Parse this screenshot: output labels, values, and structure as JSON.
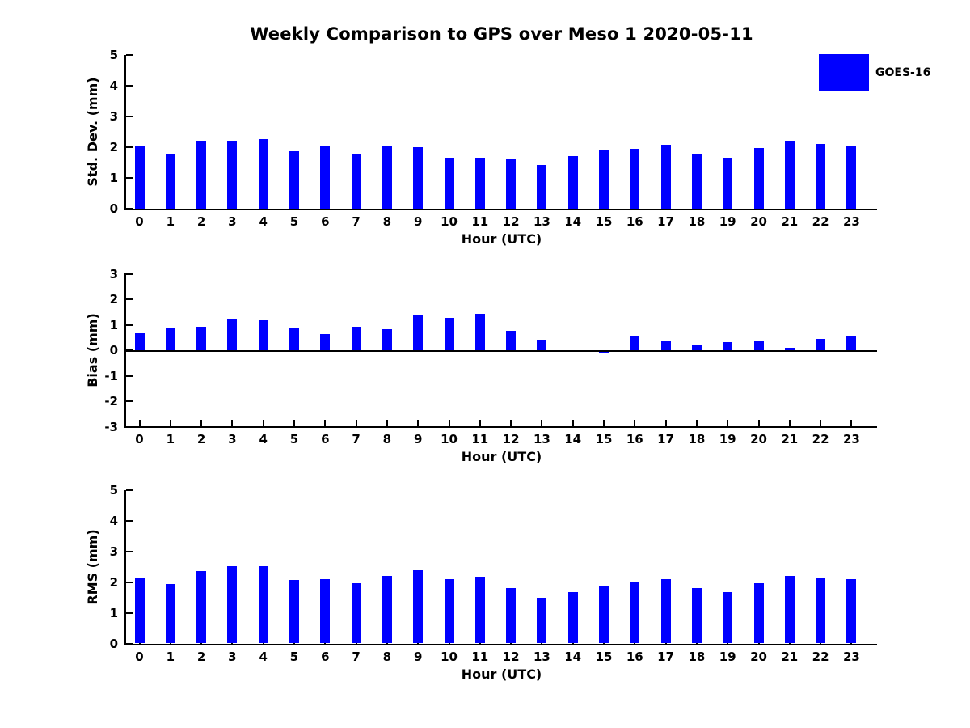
{
  "title": "Weekly Comparison to GPS over Meso 1 2020-05-11",
  "legend": {
    "label": "GOES-16",
    "swatch_color": "#0000ff",
    "position": "top-right"
  },
  "colors": {
    "bar": "#0000ff",
    "axis": "#000000",
    "background": "#ffffff",
    "text": "#000000"
  },
  "chart_data": [
    {
      "type": "bar",
      "name": "std-dev-by-hour",
      "series_name": "GOES-16",
      "title": "",
      "xlabel": "Hour (UTC)",
      "ylabel": "Std. Dev. (mm)",
      "categories": [
        "0",
        "1",
        "2",
        "3",
        "4",
        "5",
        "6",
        "7",
        "8",
        "9",
        "10",
        "11",
        "12",
        "13",
        "14",
        "15",
        "16",
        "17",
        "18",
        "19",
        "20",
        "21",
        "22",
        "23"
      ],
      "values": [
        2.05,
        1.77,
        2.22,
        2.22,
        2.27,
        1.86,
        2.05,
        1.77,
        2.05,
        2.0,
        1.66,
        1.65,
        1.63,
        1.42,
        1.71,
        1.9,
        1.95,
        2.07,
        1.8,
        1.67,
        1.97,
        2.2,
        2.1,
        2.05
      ],
      "ylim": [
        0,
        5
      ],
      "yticks": [
        0,
        1,
        2,
        3,
        4,
        5
      ],
      "grid": false
    },
    {
      "type": "bar",
      "name": "bias-by-hour",
      "series_name": "GOES-16",
      "title": "",
      "xlabel": "Hour (UTC)",
      "ylabel": "Bias (mm)",
      "categories": [
        "0",
        "1",
        "2",
        "3",
        "4",
        "5",
        "6",
        "7",
        "8",
        "9",
        "10",
        "11",
        "12",
        "13",
        "14",
        "15",
        "16",
        "17",
        "18",
        "19",
        "20",
        "21",
        "22",
        "23"
      ],
      "values": [
        0.67,
        0.87,
        0.93,
        1.23,
        1.17,
        0.87,
        0.62,
        0.93,
        0.84,
        1.35,
        1.28,
        1.43,
        0.76,
        0.42,
        0.0,
        -0.06,
        0.58,
        0.39,
        0.21,
        0.33,
        0.34,
        0.08,
        0.45,
        0.58
      ],
      "ylim": [
        -3,
        3
      ],
      "yticks": [
        -3,
        -2,
        -1,
        0,
        1,
        2,
        3
      ],
      "zero_line": true,
      "grid": false
    },
    {
      "type": "bar",
      "name": "rms-by-hour",
      "series_name": "GOES-16",
      "title": "",
      "xlabel": "Hour (UTC)",
      "ylabel": "RMS (mm)",
      "categories": [
        "0",
        "1",
        "2",
        "3",
        "4",
        "5",
        "6",
        "7",
        "8",
        "9",
        "10",
        "11",
        "12",
        "13",
        "14",
        "15",
        "16",
        "17",
        "18",
        "19",
        "20",
        "21",
        "22",
        "23"
      ],
      "values": [
        2.16,
        1.93,
        2.37,
        2.51,
        2.51,
        2.06,
        2.11,
        1.97,
        2.21,
        2.38,
        2.1,
        2.17,
        1.8,
        1.48,
        1.68,
        1.89,
        2.01,
        2.1,
        1.81,
        1.67,
        1.97,
        2.19,
        2.12,
        2.1
      ],
      "ylim": [
        0,
        5
      ],
      "yticks": [
        0,
        1,
        2,
        3,
        4,
        5
      ],
      "grid": false
    }
  ]
}
